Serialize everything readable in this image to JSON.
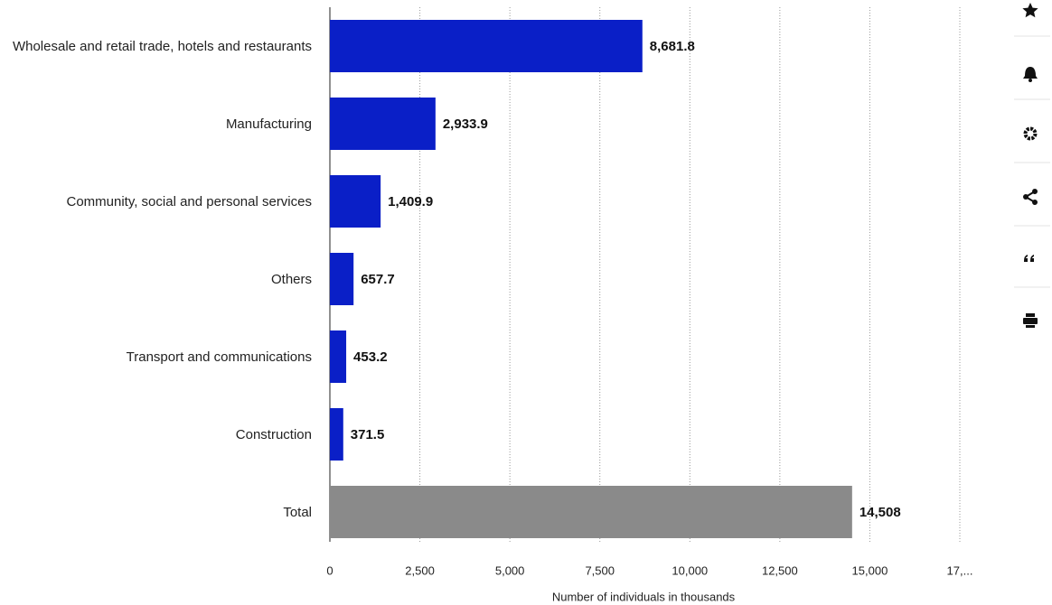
{
  "chart_data": {
    "type": "bar",
    "orientation": "horizontal",
    "categories": [
      "Wholesale and retail trade, hotels and restaurants",
      "Manufacturing",
      "Community, social and personal services",
      "Others",
      "Transport and communications",
      "Construction",
      "Total"
    ],
    "values": [
      8681.8,
      2933.9,
      1409.9,
      657.7,
      453.2,
      371.5,
      14508
    ],
    "value_labels": [
      "8,681.8",
      "2,933.9",
      "1,409.9",
      "657.7",
      "453.2",
      "371.5",
      "14,508"
    ],
    "colors": [
      "#0a1fc7",
      "#0a1fc7",
      "#0a1fc7",
      "#0a1fc7",
      "#0a1fc7",
      "#0a1fc7",
      "#8a8a8a"
    ],
    "xlabel": "Number of individuals in thousands",
    "xlim": [
      0,
      17500
    ],
    "xticks": [
      0,
      {
        "value": 2500,
        "label": "2,500"
      },
      {
        "value": 5000,
        "label": "5,000"
      },
      {
        "value": 7500,
        "label": "7,500"
      },
      {
        "value": 10000,
        "label": "10,000"
      },
      {
        "value": 12500,
        "label": "12,500"
      },
      {
        "value": 15000,
        "label": "15,000"
      },
      {
        "value": 17500,
        "label": "17,..."
      }
    ],
    "grid": true
  }
}
